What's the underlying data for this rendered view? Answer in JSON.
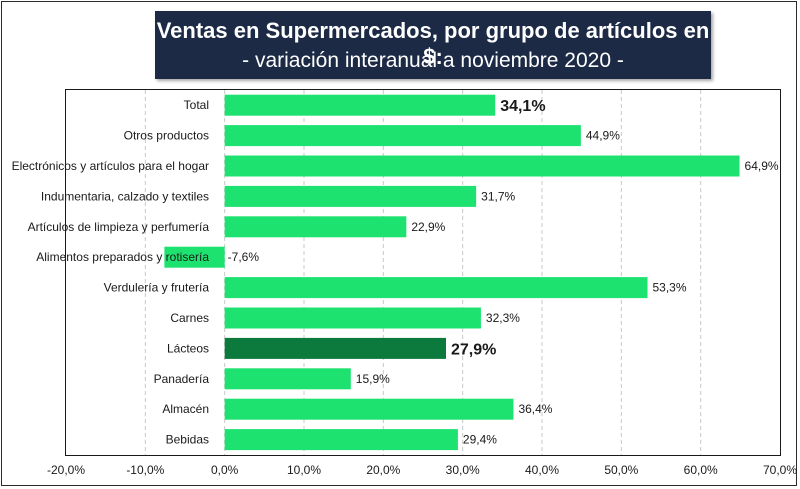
{
  "title": {
    "main": "Ventas en Supermercados, por grupo de artículos en $:",
    "sub": "- variación interanual a noviembre 2020 -"
  },
  "chart_data": {
    "type": "bar",
    "orientation": "horizontal",
    "title": "Ventas en Supermercados, por grupo de artículos en $: - variación interanual a noviembre 2020 -",
    "categories": [
      "Total",
      "Otros productos",
      "Electrónicos y artículos para el hogar",
      "Indumentaria, calzado y textiles",
      "Artículos de limpieza y perfumería",
      "Alimentos preparados y rotisería",
      "Verdulería y frutería",
      "Carnes",
      "Lácteos",
      "Panadería",
      "Almacén",
      "Bebidas"
    ],
    "values": [
      34.1,
      44.9,
      64.9,
      31.7,
      22.9,
      -7.6,
      53.3,
      32.3,
      27.9,
      15.9,
      36.4,
      29.4
    ],
    "value_labels": [
      "34,1%",
      "44,9%",
      "64,9%",
      "31,7%",
      "22,9%",
      "-7,6%",
      "53,3%",
      "32,3%",
      "27,9%",
      "15,9%",
      "36,4%",
      "29,4%"
    ],
    "emphasized": [
      "Total",
      "Lácteos"
    ],
    "highlight_category": "Lácteos",
    "colors": {
      "bar": "#1ee26f",
      "highlight": "#0c7a3c",
      "grid": "#c8c8c8",
      "title_bg": "#1c2a45"
    },
    "xlim": [
      -20,
      70
    ],
    "xticks": [
      -20,
      -10,
      0,
      10,
      20,
      30,
      40,
      50,
      60,
      70
    ],
    "xtick_labels": [
      "-20,0%",
      "-10,0%",
      "0,0%",
      "10,0%",
      "20,0%",
      "30,0%",
      "40,0%",
      "50,0%",
      "60,0%",
      "70,0%"
    ],
    "grid": "vertical dashed",
    "xlabel": "",
    "ylabel": ""
  }
}
